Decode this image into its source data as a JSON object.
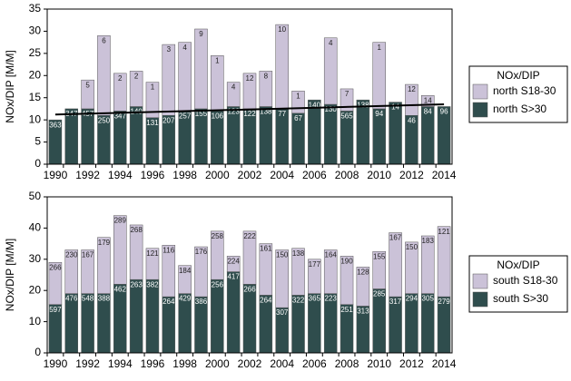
{
  "chart_data": [
    {
      "type": "stacked_bar",
      "ylabel": "NOx/DIP [M/M]",
      "categories": [
        "1990",
        null,
        "1992",
        null,
        "1994",
        null,
        "1996",
        null,
        "1998",
        null,
        "2000",
        null,
        "2002",
        null,
        "2004",
        null,
        "2006",
        null,
        "2008",
        null,
        "2010",
        null,
        "2012",
        null,
        "2014"
      ],
      "ylim": [
        0,
        35
      ],
      "yticks": [
        0,
        5,
        10,
        15,
        20,
        25,
        30,
        35
      ],
      "legend_title": "NOx/DIP",
      "series": [
        {
          "name": "north S>30",
          "color": "#2f4d4d",
          "values": [
            10,
            12.5,
            12.5,
            11,
            12,
            13,
            10.5,
            11,
            12,
            12.5,
            12,
            13,
            12.5,
            13,
            12.5,
            11.5,
            14.5,
            13.5,
            12,
            14.5,
            12.5,
            14,
            11,
            13,
            13
          ],
          "labels": [
            363,
            347,
            457,
            250,
            347,
            140,
            131,
            207,
            257,
            155,
            106,
            123,
            122,
            138,
            77,
            67,
            140,
            130,
            565,
            138,
            94,
            14,
            46,
            84,
            96
          ]
        },
        {
          "name": "north S18-30",
          "color": "#cbc2d8",
          "values": [
            0,
            0,
            6.5,
            18,
            8.5,
            8,
            8,
            16,
            15.5,
            18,
            12.5,
            5.5,
            8,
            8,
            19,
            5,
            0,
            15,
            5,
            0,
            15,
            0,
            7,
            2.5,
            0
          ],
          "labels": [
            null,
            null,
            5,
            6,
            2,
            2,
            1,
            3,
            4,
            9,
            1,
            4,
            12,
            8,
            10,
            1,
            null,
            4,
            7,
            null,
            1,
            null,
            12,
            14,
            null
          ]
        }
      ],
      "trend_line": {
        "values": [
          11.2,
          13.5
        ],
        "color": "#000000"
      }
    },
    {
      "type": "stacked_bar",
      "ylabel": "NOx/DIP [M/M]",
      "categories": [
        "1990",
        null,
        "1992",
        null,
        "1994",
        null,
        "1996",
        null,
        "1998",
        null,
        "2000",
        null,
        "2002",
        null,
        "2004",
        null,
        "2006",
        null,
        "2008",
        null,
        "2010",
        null,
        "2012",
        null,
        "2014"
      ],
      "ylim": [
        0,
        50
      ],
      "yticks": [
        0,
        10,
        20,
        30,
        40,
        50
      ],
      "legend_title": "NOx/DIP",
      "series": [
        {
          "name": "south S>30",
          "color": "#2f4d4d",
          "values": [
            15.5,
            19,
            19,
            19,
            22,
            23.5,
            23.5,
            18,
            19,
            18,
            23.5,
            26,
            22,
            18.5,
            14.5,
            18.5,
            19,
            19,
            15.5,
            15,
            20.5,
            18,
            19,
            19,
            18
          ],
          "labels": [
            597,
            476,
            548,
            388,
            462,
            263,
            382,
            264,
            429,
            386,
            256,
            417,
            266,
            264,
            307,
            322,
            365,
            223,
            251,
            313,
            285,
            317,
            294,
            305,
            279
          ]
        },
        {
          "name": "south S18-30",
          "color": "#cbc2d8",
          "values": [
            13.5,
            14,
            14,
            18,
            22,
            17.5,
            10,
            16.5,
            9,
            16,
            15.5,
            5,
            17,
            16.5,
            18.5,
            15,
            11,
            14,
            15.5,
            12.5,
            12,
            20.5,
            16.5,
            18.5,
            22.5
          ],
          "labels": [
            266,
            230,
            167,
            179,
            289,
            268,
            121,
            116,
            184,
            176,
            258,
            224,
            222,
            161,
            150,
            138,
            177,
            164,
            190,
            128,
            155,
            167,
            150,
            183,
            121
          ]
        }
      ]
    }
  ]
}
